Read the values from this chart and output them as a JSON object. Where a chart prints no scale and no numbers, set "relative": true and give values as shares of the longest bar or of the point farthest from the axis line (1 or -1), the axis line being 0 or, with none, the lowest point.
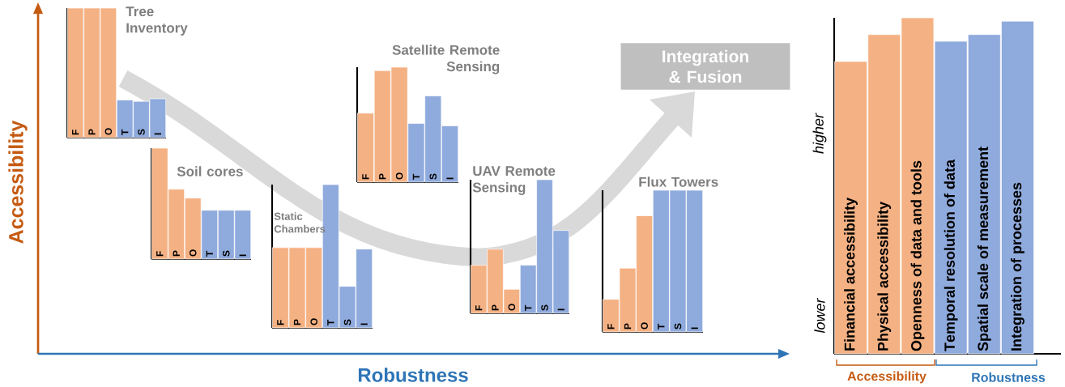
{
  "chart_data": [
    {
      "type": "other",
      "xlabel": "Robustness",
      "ylabel": "Accessibility",
      "annotations": [
        "Integration & Fusion"
      ]
    },
    {
      "type": "bar",
      "relative": true,
      "title": "Tree Inventory",
      "categories": [
        "F",
        "P",
        "O",
        "T",
        "S",
        "I"
      ],
      "values": [
        1,
        1,
        1,
        0.29,
        0.28,
        0.3
      ],
      "colors": [
        "#f4b183",
        "#f4b183",
        "#f4b183",
        "#8faadc",
        "#8faadc",
        "#8faadc"
      ]
    },
    {
      "type": "bar",
      "relative": true,
      "title": "Soil cores",
      "categories": [
        "F",
        "P",
        "O",
        "T",
        "S",
        "I"
      ],
      "values": [
        1,
        0.63,
        0.55,
        0.44,
        0.44,
        0.44
      ],
      "colors": [
        "#f4b183",
        "#f4b183",
        "#f4b183",
        "#8faadc",
        "#8faadc",
        "#8faadc"
      ]
    },
    {
      "type": "bar",
      "relative": true,
      "title": "Static Chambers",
      "categories": [
        "F",
        "P",
        "O",
        "T",
        "S",
        "I"
      ],
      "values": [
        0.56,
        0.56,
        0.56,
        1,
        0.29,
        0.55
      ],
      "colors": [
        "#f4b183",
        "#f4b183",
        "#f4b183",
        "#8faadc",
        "#8faadc",
        "#8faadc"
      ]
    },
    {
      "type": "bar",
      "relative": true,
      "title": "Satellite Remote Sensing",
      "categories": [
        "F",
        "P",
        "O",
        "T",
        "S",
        "I"
      ],
      "values": [
        0.6,
        0.97,
        1,
        0.51,
        0.75,
        0.49
      ],
      "colors": [
        "#f4b183",
        "#f4b183",
        "#f4b183",
        "#8faadc",
        "#8faadc",
        "#8faadc"
      ]
    },
    {
      "type": "bar",
      "relative": true,
      "title": "UAV Remote Sensing",
      "categories": [
        "F",
        "P",
        "O",
        "T",
        "S",
        "I"
      ],
      "values": [
        0.36,
        0.48,
        0.18,
        0.36,
        1,
        0.62
      ],
      "colors": [
        "#f4b183",
        "#f4b183",
        "#f4b183",
        "#8faadc",
        "#8faadc",
        "#8faadc"
      ]
    },
    {
      "type": "bar",
      "relative": true,
      "title": "Flux Towers",
      "categories": [
        "F",
        "P",
        "O",
        "T",
        "S",
        "I"
      ],
      "values": [
        0.23,
        0.45,
        0.82,
        1,
        1,
        1
      ],
      "colors": [
        "#f4b183",
        "#f4b183",
        "#f4b183",
        "#8faadc",
        "#8faadc",
        "#8faadc"
      ]
    },
    {
      "type": "bar",
      "relative": true,
      "categories": [
        "**F**inancial accessibility",
        "**P**hysical accessibility",
        "**O**penness of data and tools",
        "**T**emporal resolution of data",
        "**S**patial scale of measurement",
        "**I**ntegration of processes"
      ],
      "values": [
        0.87,
        0.95,
        1,
        0.93,
        0.95,
        0.99
      ],
      "colors": [
        "#f4b183",
        "#f4b183",
        "#f4b183",
        "#8faadc",
        "#8faadc",
        "#8faadc"
      ],
      "annotations": [
        "higher",
        "lower",
        "Accessibility",
        "Robustness"
      ]
    }
  ]
}
